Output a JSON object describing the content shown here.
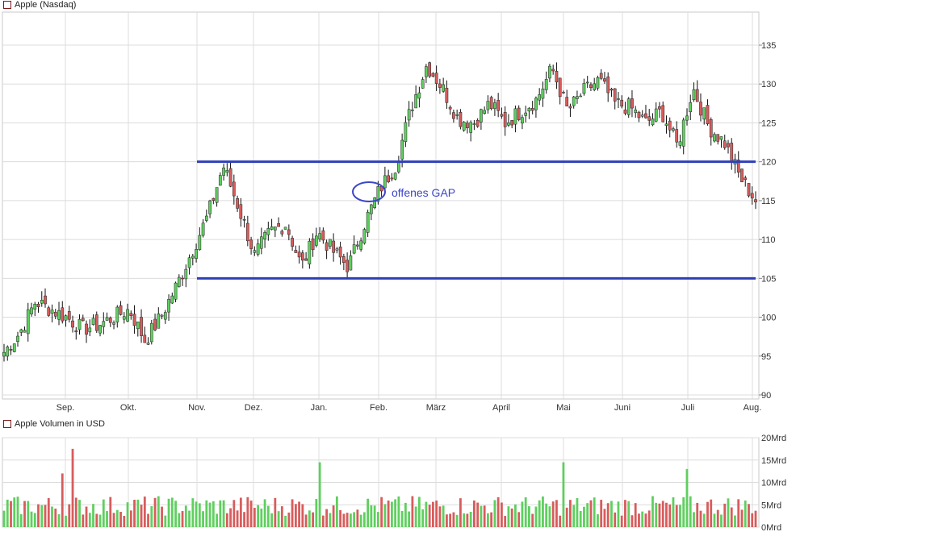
{
  "price_legend": {
    "label": "Apple (Nasdaq)",
    "color": "#c84b4b"
  },
  "volume_legend": {
    "label": "Apple Volumen in USD",
    "color": "#c84b4b"
  },
  "annotation": {
    "text": "offenes GAP",
    "color": "#3c46c8"
  },
  "colors": {
    "up": "#5fcf5f",
    "down": "#d85c5c",
    "wick": "#111111",
    "line": "#2f3fb8",
    "grid": "#dcdcdc"
  },
  "chart_data": [
    {
      "type": "candlestick",
      "title": "Apple (Nasdaq)",
      "x_ticks": [
        "Sep.",
        "Okt.",
        "Nov.",
        "Dez.",
        "Jan.",
        "Feb.",
        "März",
        "April",
        "Mai",
        "Juni",
        "Juli",
        "Aug."
      ],
      "y_ticks": [
        90,
        95,
        100,
        105,
        110,
        115,
        120,
        125,
        130,
        135
      ],
      "ylim": [
        90,
        139
      ],
      "grid": true,
      "horizontal_lines": [
        {
          "value": 120,
          "from": "Nov.",
          "to": "Aug."
        },
        {
          "value": 105,
          "from": "Nov.",
          "to": "Aug."
        }
      ],
      "annotation": {
        "text": "offenes GAP",
        "x": "Feb.",
        "y": 114
      },
      "anchors": [
        [
          "Aug.",
          95.5
        ],
        [
          "Sep.",
          98
        ],
        [
          "Sep.",
          102
        ],
        [
          "Sep.",
          101
        ],
        [
          "Okt.",
          100
        ],
        [
          "Okt.",
          98.5
        ],
        [
          "Okt.",
          99
        ],
        [
          "Okt.",
          100
        ],
        [
          "Okt.",
          101
        ],
        [
          "Okt.",
          97
        ],
        [
          "Okt.",
          100
        ],
        [
          "Nov.",
          104
        ],
        [
          "Nov.",
          108.5
        ],
        [
          "Nov.",
          113
        ],
        [
          "Dez.",
          119.5
        ],
        [
          "Dez.",
          114
        ],
        [
          "Dez.",
          108
        ],
        [
          "Dez.",
          111
        ],
        [
          "Jan.",
          112
        ],
        [
          "Jan.",
          106.5
        ],
        [
          "Jan.",
          111
        ],
        [
          "Jan.",
          108.5
        ],
        [
          "Jan.",
          106.5
        ],
        [
          "Jan.",
          112
        ],
        [
          "Feb.",
          116.5
        ],
        [
          "Feb.",
          119.5
        ],
        [
          "Feb.",
          127
        ],
        [
          "März",
          132.5
        ],
        [
          "März",
          129.5
        ],
        [
          "März",
          125.5
        ],
        [
          "März",
          125
        ],
        [
          "März",
          127.5
        ],
        [
          "April",
          125
        ],
        [
          "April",
          126.5
        ],
        [
          "April",
          128
        ],
        [
          "Mai",
          132
        ],
        [
          "Mai",
          126.5
        ],
        [
          "Mai",
          129
        ],
        [
          "Juni",
          130.5
        ],
        [
          "Juni",
          127.5
        ],
        [
          "Juni",
          127
        ],
        [
          "Juni",
          125
        ],
        [
          "Juli",
          126.5
        ],
        [
          "Juli",
          122
        ],
        [
          "Juli",
          129.5
        ],
        [
          "Juli",
          124.5
        ],
        [
          "Juli",
          122.5
        ],
        [
          "Aug.",
          118
        ],
        [
          "Aug.",
          115
        ]
      ]
    },
    {
      "type": "bar",
      "title": "Apple Volumen in USD",
      "y_ticks": [
        "0Mrd",
        "5Mrd",
        "10Mrd",
        "15Mrd",
        "20Mrd"
      ],
      "ylim": [
        0,
        20
      ],
      "grid": true,
      "highlights": [
        {
          "x": "Sep.",
          "value": 12
        },
        {
          "x": "Sep.",
          "value": 17.5
        },
        {
          "x": "Jan.",
          "value": 14.5
        },
        {
          "x": "Mai",
          "value": 14.5
        },
        {
          "x": "Juli",
          "value": 13
        }
      ]
    }
  ]
}
